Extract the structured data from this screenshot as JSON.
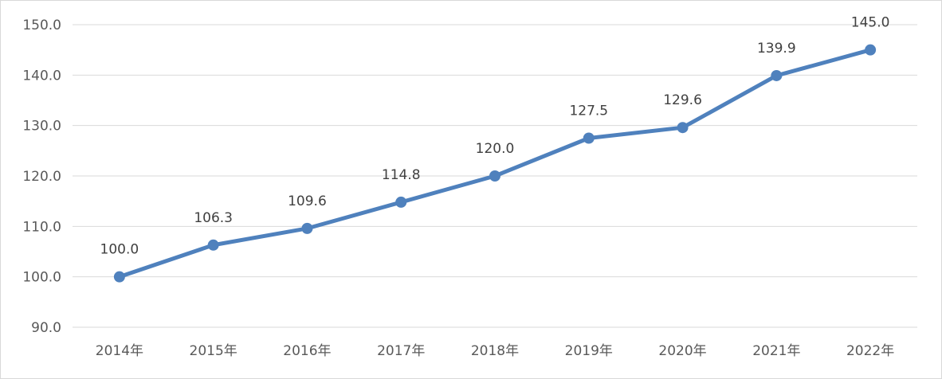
{
  "chart_data": {
    "type": "line",
    "title": "",
    "xlabel": "",
    "ylabel": "",
    "categories": [
      "2014年",
      "2015年",
      "2016年",
      "2017年",
      "2018年",
      "2019年",
      "2020年",
      "2021年",
      "2022年"
    ],
    "series": [
      {
        "values": [
          100.0,
          106.3,
          109.6,
          114.8,
          120.0,
          127.5,
          129.6,
          139.9,
          145.0
        ],
        "color": "#4f81bd"
      }
    ],
    "data_labels": [
      "100.0",
      "106.3",
      "109.6",
      "114.8",
      "120.0",
      "127.5",
      "129.6",
      "139.9",
      "145.0"
    ],
    "ylim": [
      90,
      150
    ],
    "yticks": [
      90,
      100,
      110,
      120,
      130,
      140,
      150
    ],
    "ytick_labels": [
      "90.0",
      "100.0",
      "110.0",
      "120.0",
      "130.0",
      "140.0",
      "150.0"
    ],
    "grid": true,
    "legend": "none",
    "colors": {
      "line": "#4f81bd",
      "grid": "#d9d9d9",
      "text": "#595959"
    }
  }
}
